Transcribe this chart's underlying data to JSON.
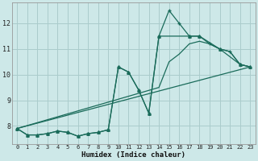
{
  "xlabel": "Humidex (Indice chaleur)",
  "background_color": "#cde8e8",
  "grid_color": "#aacccc",
  "line_color": "#1a6b5a",
  "xlim": [
    -0.5,
    23.5
  ],
  "ylim": [
    7.3,
    12.8
  ],
  "yticks": [
    8,
    9,
    10,
    11,
    12
  ],
  "xticks": [
    0,
    1,
    2,
    3,
    4,
    5,
    6,
    7,
    8,
    9,
    10,
    11,
    12,
    13,
    14,
    15,
    16,
    17,
    18,
    19,
    20,
    21,
    22,
    23
  ],
  "lines": [
    {
      "x": [
        0,
        1,
        2,
        3,
        4,
        5,
        6,
        7,
        8,
        9,
        10,
        11,
        12,
        13,
        14,
        15,
        16,
        17,
        18,
        19,
        20,
        21,
        22,
        23
      ],
      "y": [
        7.9,
        7.65,
        7.65,
        7.7,
        7.8,
        7.75,
        7.6,
        7.7,
        7.75,
        7.85,
        10.3,
        10.1,
        9.4,
        8.5,
        11.5,
        12.5,
        12.0,
        11.5,
        11.5,
        11.2,
        11.0,
        10.9,
        10.4,
        10.3
      ],
      "marker": "+",
      "markersize": 3.5,
      "linewidth": 0.9
    },
    {
      "x": [
        0,
        1,
        2,
        3,
        4,
        5,
        6,
        7,
        8,
        9,
        10,
        11,
        12,
        13,
        14,
        17,
        18,
        20,
        22,
        23
      ],
      "y": [
        7.9,
        7.65,
        7.65,
        7.7,
        7.8,
        7.75,
        7.6,
        7.7,
        7.75,
        7.85,
        10.3,
        10.1,
        9.4,
        8.5,
        11.5,
        11.5,
        11.5,
        11.0,
        10.4,
        10.3
      ],
      "marker": "^",
      "markersize": 2.5,
      "linewidth": 0.9
    },
    {
      "x": [
        0,
        14,
        15,
        16,
        17,
        18,
        19,
        20,
        21,
        22,
        23
      ],
      "y": [
        7.9,
        9.5,
        10.5,
        10.8,
        11.2,
        11.3,
        11.2,
        11.0,
        10.9,
        10.4,
        10.3
      ],
      "marker": null,
      "markersize": 0,
      "linewidth": 0.9
    },
    {
      "x": [
        0,
        23
      ],
      "y": [
        7.9,
        10.3
      ],
      "marker": null,
      "markersize": 0,
      "linewidth": 0.9
    }
  ]
}
